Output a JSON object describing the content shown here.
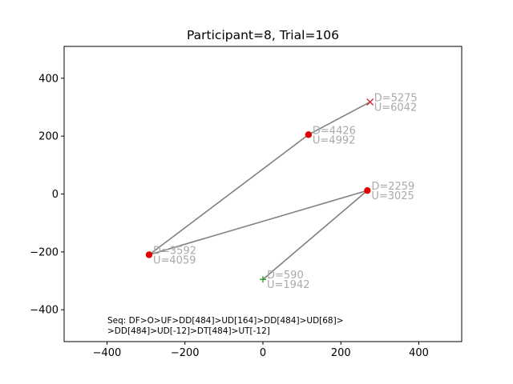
{
  "chart_data": {
    "type": "scatter",
    "title": "Participant=8, Trial=106",
    "xlim": [
      -510,
      510
    ],
    "ylim": [
      -510,
      510
    ],
    "xticks": [
      -400,
      -200,
      0,
      200,
      400
    ],
    "yticks": [
      -400,
      -200,
      0,
      200,
      400
    ],
    "xtick_labels": [
      "−400",
      "−200",
      "0",
      "200",
      "400"
    ],
    "ytick_labels": [
      "−400",
      "−200",
      "0",
      "200",
      "400"
    ],
    "grid": false,
    "colors": {
      "line": "#808080",
      "point": "#e00000",
      "start": "#2ca02c",
      "end": "#d62728",
      "label": "#aaaaaa"
    },
    "path": [
      {
        "x": 0,
        "y": -295,
        "marker": "plus",
        "labels": [
          "D=590",
          "U=1942"
        ]
      },
      {
        "x": 268,
        "y": 12,
        "marker": "circle",
        "labels": [
          "D=2259",
          "U=3025"
        ]
      },
      {
        "x": -292,
        "y": -210,
        "marker": "circle",
        "labels": [
          "D=3592",
          "U=4059"
        ]
      },
      {
        "x": 117,
        "y": 205,
        "marker": "circle",
        "labels": [
          "D=4426",
          "U=4992"
        ]
      },
      {
        "x": 275,
        "y": 318,
        "marker": "x",
        "labels": [
          "D=5275",
          "U=6042"
        ]
      }
    ],
    "annotation": [
      "Seq: DF>O>UF>DD[484]>UD[164]>DD[484]>UD[68]>",
      ">DD[484]>UD[-12]>DT[484]>UT[-12]"
    ]
  }
}
